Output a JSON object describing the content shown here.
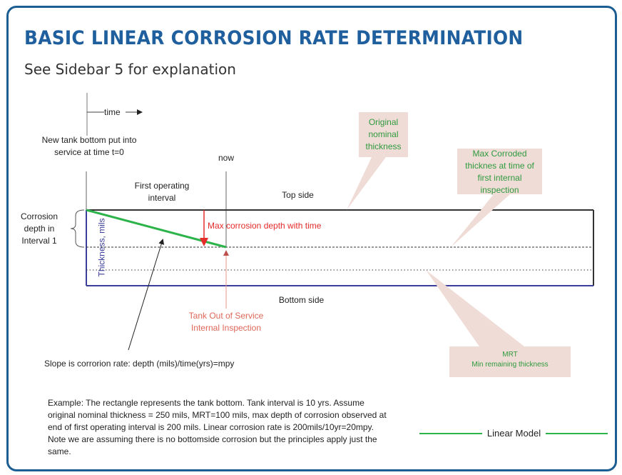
{
  "header": {
    "title": "BASIC LINEAR CORROSION RATE DETERMINATION",
    "subtitle": "See Sidebar 5 for explanation"
  },
  "diagram": {
    "time_label": "time",
    "start_label": "New tank bottom put into service at time t=0",
    "now_label": "now",
    "interval_label": "First operating interval",
    "top_side": "Top side",
    "bottom_side": "Bottom side",
    "corrosion_depth": "Corrosion depth in Interval 1",
    "thickness_axis": "Thickness, mils",
    "max_depth": "Max corrosion depth with time",
    "tank_out": "Tank Out of Service Internal Inspection",
    "slope": "Slope is corrorion rate: depth (mils)/time(yrs)=mpy",
    "callout_original": "Original nominal thickness",
    "callout_max_corroded": "Max Corroded thicknes at time of first internal inspection",
    "callout_mrt_title": "MRT",
    "callout_mrt_sub": "Min remaining thickness",
    "legend": "Linear Model"
  },
  "example": "Example: The rectangle represents the tank bottom. Tank interval is 10 yrs. Assume original nominal thickness = 250 mils, MRT=100 mils, max depth of corrosion observed at end of first operating interval is 200 mils. Linear corrosion rate is 200mils/10yr=20mpy. Note we are assuming there is no bottomside corrosion but the principles apply just the same.",
  "colors": {
    "title": "#1f5f9e",
    "linear_model": "#2cb34a",
    "callout_fill": "#f0dcd6",
    "callout_text": "#2e9a3e",
    "red": "#e62b2b",
    "tank_blue": "#3b3f9a"
  }
}
